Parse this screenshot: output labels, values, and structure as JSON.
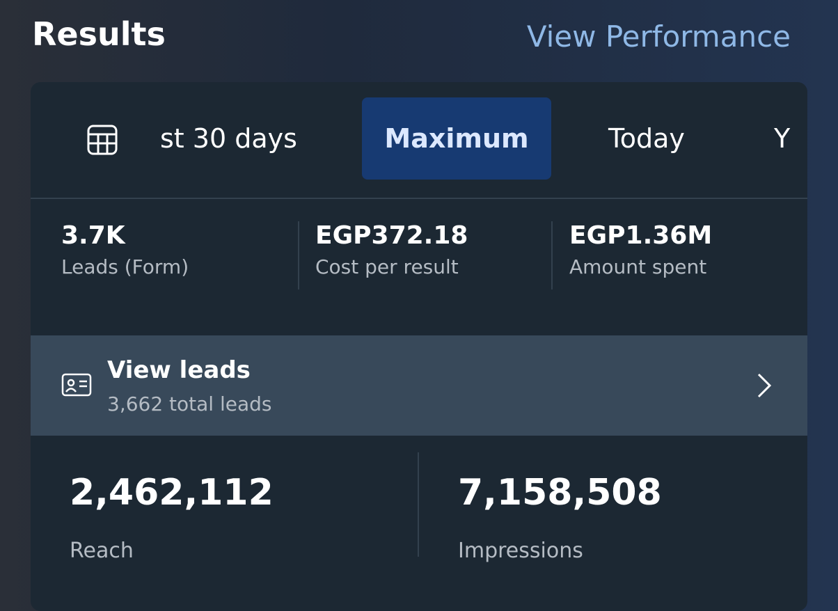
{
  "header": {
    "title": "Results",
    "link": "View Performance"
  },
  "tabs": [
    "st 30 days",
    "Maximum",
    "Today",
    "Y"
  ],
  "metrics": [
    {
      "value": "3.7K",
      "label": "Leads (Form)"
    },
    {
      "value": "EGP372.18",
      "label": "Cost per result"
    },
    {
      "value": "EGP1.36M",
      "label": "Amount spent"
    }
  ],
  "leads": {
    "title": "View leads",
    "subtitle": "3,662 total leads"
  },
  "stats": [
    {
      "value": "2,462,112",
      "label": "Reach"
    },
    {
      "value": "7,158,508",
      "label": "Impressions"
    }
  ]
}
